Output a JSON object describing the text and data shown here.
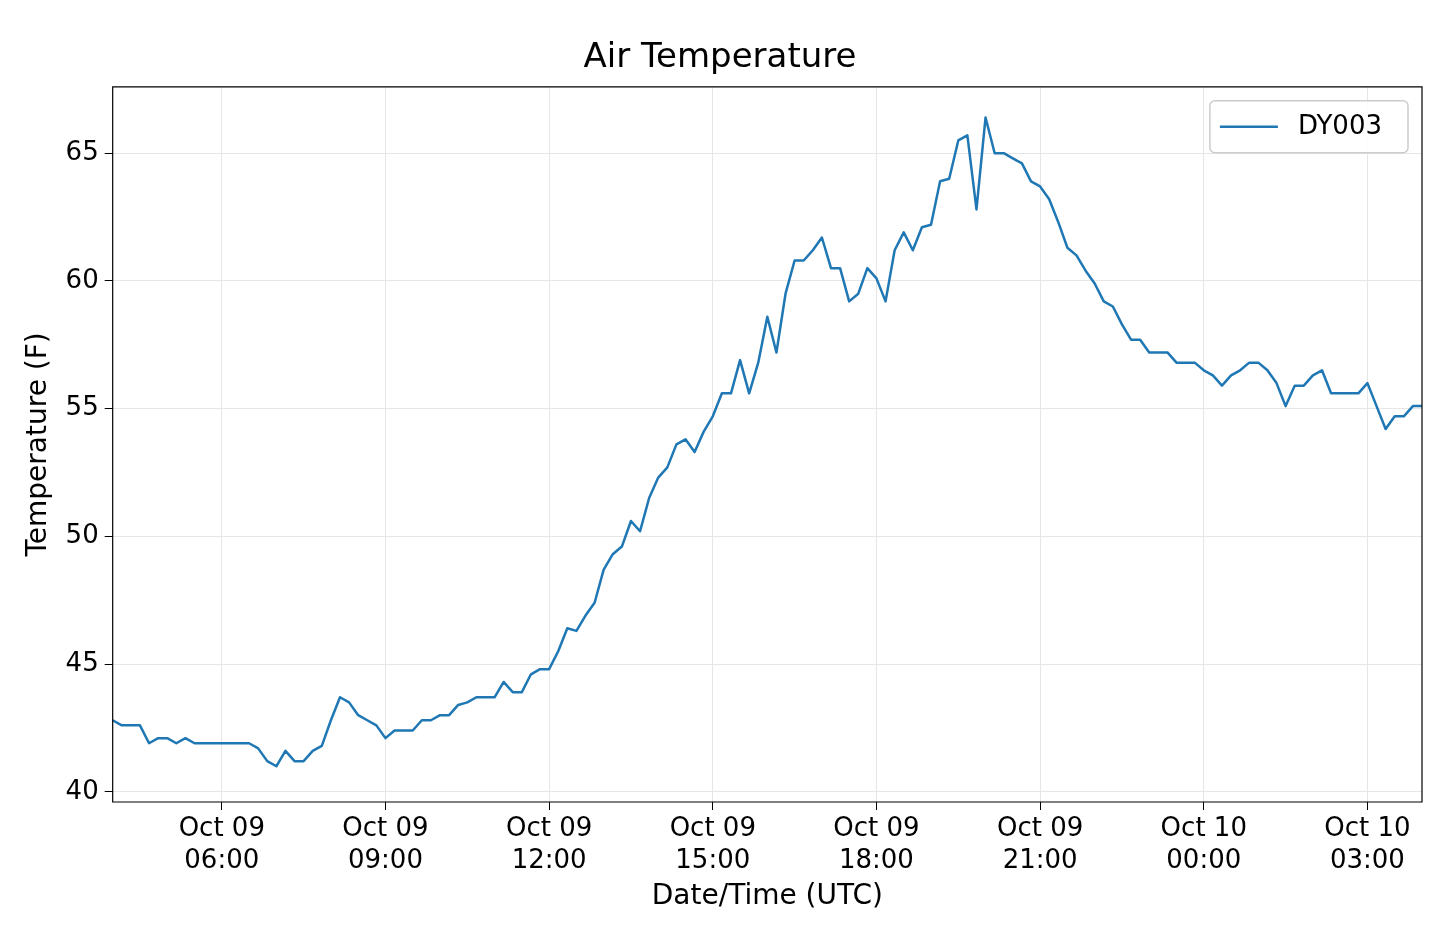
{
  "chart_data": {
    "type": "line",
    "title": "Air Temperature",
    "xlabel": "Date/Time (UTC)",
    "ylabel": "Temperature (F)",
    "categories": [
      null,
      null,
      null,
      null,
      null,
      null,
      null,
      null,
      null,
      null,
      null,
      null,
      "Oct 09\n06:00",
      null,
      null,
      null,
      null,
      null,
      null,
      null,
      null,
      null,
      null,
      null,
      null,
      null,
      null,
      null,
      null,
      null,
      "Oct 09\n09:00",
      null,
      null,
      null,
      null,
      null,
      null,
      null,
      null,
      null,
      null,
      null,
      null,
      null,
      null,
      null,
      null,
      null,
      "Oct 09\n12:00",
      null,
      null,
      null,
      null,
      null,
      null,
      null,
      null,
      null,
      null,
      null,
      null,
      null,
      null,
      null,
      null,
      null,
      "Oct 09\n15:00",
      null,
      null,
      null,
      null,
      null,
      null,
      null,
      null,
      null,
      null,
      null,
      null,
      null,
      null,
      null,
      null,
      null,
      "Oct 09\n18:00",
      null,
      null,
      null,
      null,
      null,
      null,
      null,
      null,
      null,
      null,
      null,
      null,
      null,
      null,
      null,
      null,
      null,
      "Oct 09\n21:00",
      null,
      null,
      null,
      null,
      null,
      null,
      null,
      null,
      null,
      null,
      null,
      null,
      null,
      null,
      null,
      null,
      null,
      "Oct 10\n00:00",
      null,
      null,
      null,
      null,
      null,
      null,
      null,
      null,
      null,
      null,
      null,
      null,
      null,
      null,
      null,
      null,
      null,
      "Oct 10\n03:00",
      null,
      null,
      null,
      null,
      null,
      null
    ],
    "ylim": [
      39.6,
      67.6
    ],
    "yticks": [
      40,
      45,
      50,
      55,
      60,
      65
    ],
    "grid": true,
    "legend": "top right",
    "marker": "none",
    "line_style": "solid",
    "series": [
      {
        "name": "DY003",
        "color": "#1f77b4",
        "values": [
          42.8,
          42.6,
          42.6,
          42.6,
          41.9,
          42.1,
          42.1,
          41.9,
          42.1,
          41.9,
          41.9,
          41.9,
          41.9,
          41.9,
          41.9,
          41.9,
          41.7,
          41.2,
          41.0,
          41.6,
          41.2,
          41.2,
          41.6,
          41.8,
          42.8,
          43.7,
          43.5,
          43.0,
          42.8,
          42.6,
          42.1,
          42.4,
          42.4,
          42.4,
          42.8,
          42.8,
          43.0,
          43.0,
          43.4,
          43.5,
          43.7,
          43.7,
          43.7,
          44.3,
          43.9,
          43.9,
          44.6,
          44.8,
          44.8,
          45.5,
          46.4,
          46.3,
          46.9,
          47.4,
          48.7,
          49.3,
          49.6,
          50.6,
          50.2,
          51.5,
          52.3,
          52.7,
          53.6,
          53.8,
          53.3,
          54.1,
          54.7,
          55.6,
          55.6,
          56.9,
          55.6,
          56.8,
          58.6,
          57.2,
          59.5,
          60.8,
          60.8,
          61.2,
          61.7,
          60.5,
          60.5,
          59.2,
          59.5,
          60.5,
          60.1,
          59.2,
          61.2,
          61.9,
          61.2,
          62.1,
          62.2,
          63.9,
          64.0,
          65.5,
          65.7,
          62.8,
          66.4,
          65.0,
          65.0,
          64.8,
          64.6,
          63.9,
          63.7,
          63.2,
          62.3,
          61.3,
          61.0,
          60.4,
          59.9,
          59.2,
          59.0,
          58.3,
          57.7,
          57.7,
          57.2,
          57.2,
          57.2,
          56.8,
          56.8,
          56.8,
          56.5,
          56.3,
          55.9,
          56.3,
          56.5,
          56.8,
          56.8,
          56.5,
          56.0,
          55.1,
          55.9,
          55.9,
          56.3,
          56.5,
          55.6,
          55.6,
          55.6,
          55.6,
          56.0,
          55.1,
          54.2,
          54.7,
          54.7,
          55.1,
          55.1
        ]
      }
    ]
  }
}
